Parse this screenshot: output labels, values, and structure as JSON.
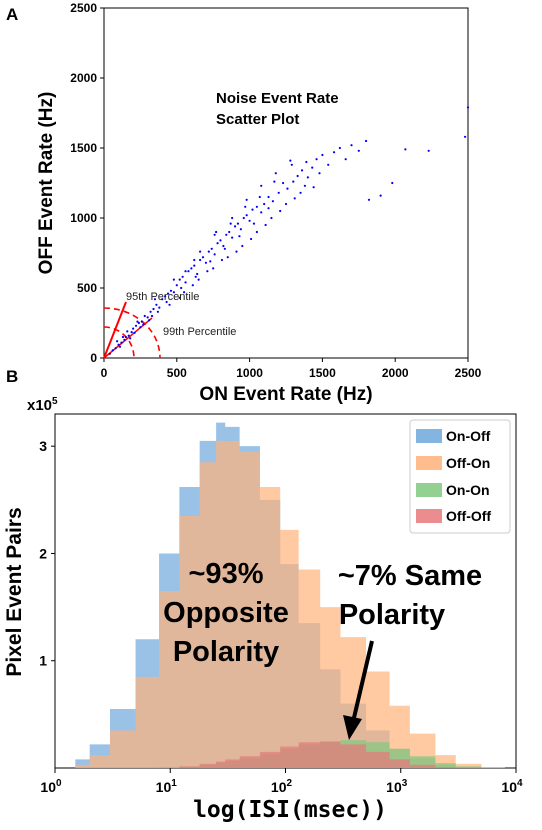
{
  "panels": {
    "a_label": "A",
    "b_label": "B"
  },
  "chart_data": [
    {
      "type": "scatter",
      "title": "Noise Event Rate\nScatter Plot",
      "title_lines": [
        "Noise Event Rate",
        "Scatter Plot"
      ],
      "xlabel": "ON Event Rate (Hz)",
      "ylabel": "OFF Event Rate (Hz)",
      "xlim": [
        0,
        2500
      ],
      "ylim": [
        0,
        2500
      ],
      "xticks": [
        "0",
        "500",
        "1000",
        "1500",
        "2000",
        "2500"
      ],
      "yticks": [
        "0",
        "500",
        "1000",
        "1500",
        "2000",
        "2500"
      ],
      "point_color": "#0000ff",
      "annotations": [
        {
          "text": "95th Percentile",
          "color": "#ff0000"
        },
        {
          "text": "99th Percentile",
          "color": "#ff0000"
        }
      ],
      "series": [
        {
          "points": [
            [
              40,
              30
            ],
            [
              60,
              55
            ],
            [
              80,
              70
            ],
            [
              100,
              95
            ],
            [
              120,
              110
            ],
            [
              140,
              130
            ],
            [
              150,
              150
            ],
            [
              170,
              160
            ],
            [
              190,
              185
            ],
            [
              200,
              210
            ],
            [
              220,
              230
            ],
            [
              240,
              250
            ],
            [
              260,
              260
            ],
            [
              280,
              300
            ],
            [
              300,
              290
            ],
            [
              320,
              330
            ],
            [
              340,
              350
            ],
            [
              360,
              380
            ],
            [
              380,
              360
            ],
            [
              400,
              420
            ],
            [
              420,
              440
            ],
            [
              440,
              460
            ],
            [
              460,
              480
            ],
            [
              480,
              470
            ],
            [
              500,
              520
            ],
            [
              520,
              560
            ],
            [
              540,
              580
            ],
            [
              560,
              540
            ],
            [
              580,
              620
            ],
            [
              600,
              640
            ],
            [
              620,
              660
            ],
            [
              640,
              600
            ],
            [
              660,
              700
            ],
            [
              680,
              720
            ],
            [
              700,
              680
            ],
            [
              720,
              760
            ],
            [
              740,
              780
            ],
            [
              760,
              740
            ],
            [
              780,
              820
            ],
            [
              800,
              840
            ],
            [
              820,
              800
            ],
            [
              840,
              880
            ],
            [
              860,
              900
            ],
            [
              880,
              860
            ],
            [
              900,
              940
            ],
            [
              920,
              960
            ],
            [
              940,
              920
            ],
            [
              960,
              1000
            ],
            [
              980,
              1020
            ],
            [
              1000,
              980
            ],
            [
              1020,
              1060
            ],
            [
              1050,
              1080
            ],
            [
              1080,
              1040
            ],
            [
              1100,
              1100
            ],
            [
              1130,
              1150
            ],
            [
              1160,
              1120
            ],
            [
              1200,
              1180
            ],
            [
              1230,
              1250
            ],
            [
              1260,
              1210
            ],
            [
              1300,
              1260
            ],
            [
              1330,
              1300
            ],
            [
              1360,
              1340
            ],
            [
              1400,
              1290
            ],
            [
              1430,
              1360
            ],
            [
              1460,
              1420
            ],
            [
              1500,
              1450
            ],
            [
              1540,
              1380
            ],
            [
              1580,
              1470
            ],
            [
              1620,
              1500
            ],
            [
              1660,
              1420
            ],
            [
              1700,
              1520
            ],
            [
              1750,
              1480
            ],
            [
              1800,
              1550
            ],
            [
              1820,
              1130
            ],
            [
              1900,
              1160
            ],
            [
              1980,
              1250
            ],
            [
              2070,
              1490
            ],
            [
              2230,
              1480
            ],
            [
              2480,
              1580
            ],
            [
              2500,
              1790
            ],
            [
              450,
              380
            ],
            [
              550,
              470
            ],
            [
              650,
              560
            ],
            [
              750,
              640
            ],
            [
              850,
              720
            ],
            [
              950,
              800
            ],
            [
              1050,
              900
            ],
            [
              1150,
              1000
            ],
            [
              1250,
              1100
            ],
            [
              1350,
              1180
            ],
            [
              350,
              420
            ],
            [
              480,
              560
            ],
            [
              620,
              700
            ],
            [
              760,
              880
            ],
            [
              880,
              1000
            ],
            [
              980,
              1130
            ],
            [
              1080,
              1230
            ],
            [
              1180,
              1320
            ],
            [
              1280,
              1410
            ],
            [
              1380,
              1230
            ],
            [
              230,
              260
            ],
            [
              330,
              300
            ],
            [
              430,
              400
            ],
            [
              530,
              500
            ],
            [
              630,
              580
            ],
            [
              730,
              690
            ],
            [
              830,
              780
            ],
            [
              930,
              870
            ],
            [
              1030,
              960
            ],
            [
              1130,
              1070
            ],
            [
              90,
              120
            ],
            [
              110,
              80
            ],
            [
              130,
              150
            ],
            [
              160,
              190
            ],
            [
              180,
              140
            ],
            [
              210,
              180
            ],
            [
              250,
              220
            ],
            [
              270,
              240
            ],
            [
              310,
              270
            ],
            [
              370,
              330
            ],
            [
              520,
              430
            ],
            [
              610,
              520
            ],
            [
              710,
              620
            ],
            [
              810,
              700
            ],
            [
              910,
              760
            ],
            [
              1010,
              850
            ],
            [
              1110,
              950
            ],
            [
              1210,
              1050
            ],
            [
              1310,
              1140
            ],
            [
              1440,
              1220
            ],
            [
              560,
              620
            ],
            [
              660,
              760
            ],
            [
              770,
              900
            ],
            [
              870,
              960
            ],
            [
              970,
              1080
            ],
            [
              1070,
              1150
            ],
            [
              1170,
              1260
            ],
            [
              1290,
              1380
            ],
            [
              1390,
              1400
            ],
            [
              1480,
              1320
            ]
          ]
        }
      ]
    },
    {
      "type": "area",
      "title": "",
      "xlabel": "log(ISI(msec))",
      "ylabel": "Pixel Event Pairs",
      "x_scale": "log",
      "xlim": [
        1,
        10000
      ],
      "ylim": [
        0,
        330000
      ],
      "y_multiplier_label": "x10",
      "y_multiplier_exp": "5",
      "xticks": [
        {
          "base": "10",
          "exp": "0"
        },
        {
          "base": "10",
          "exp": "1"
        },
        {
          "base": "10",
          "exp": "2"
        },
        {
          "base": "10",
          "exp": "3"
        },
        {
          "base": "10",
          "exp": "4"
        }
      ],
      "yticks": [
        "1",
        "2",
        "3"
      ],
      "legend_placement": "top-right",
      "x": [
        1,
        1.5,
        2,
        3,
        5,
        8,
        12,
        18,
        25,
        30,
        40,
        60,
        90,
        130,
        200,
        300,
        500,
        800,
        1200,
        2000,
        3000,
        5000,
        8000
      ],
      "series": [
        {
          "name": "On-Off",
          "color": "#6fa8dc",
          "values": [
            0,
            8000,
            22000,
            55000,
            120000,
            200000,
            262000,
            305000,
            322000,
            318000,
            300000,
            250000,
            190000,
            135000,
            92000,
            60000,
            35000,
            18000,
            9000,
            3000,
            1000,
            300,
            0
          ]
        },
        {
          "name": "Off-On",
          "color": "#ffb27a",
          "values": [
            0,
            3000,
            12000,
            35000,
            85000,
            165000,
            235000,
            285000,
            305000,
            305000,
            295000,
            262000,
            222000,
            185000,
            150000,
            122000,
            90000,
            58000,
            32000,
            12000,
            4000,
            800,
            0
          ]
        },
        {
          "name": "On-On",
          "color": "#7fc97f",
          "values": [
            0,
            0,
            0,
            0,
            0,
            300,
            1200,
            3000,
            5000,
            6500,
            9000,
            13000,
            18000,
            22000,
            25000,
            26000,
            24000,
            18000,
            11000,
            4500,
            1500,
            300,
            0
          ]
        },
        {
          "name": "Off-Off",
          "color": "#e8787a",
          "values": [
            0,
            0,
            0,
            0,
            0,
            300,
            1500,
            4000,
            6000,
            8000,
            11000,
            15000,
            20000,
            24000,
            24500,
            22000,
            15000,
            8000,
            3000,
            800,
            200,
            0,
            0
          ]
        }
      ],
      "annotations": [
        {
          "text": "~93%"
        },
        {
          "text": "Opposite"
        },
        {
          "text": "Polarity"
        },
        {
          "text": "~7% Same"
        },
        {
          "text": "Polarity"
        }
      ]
    }
  ]
}
